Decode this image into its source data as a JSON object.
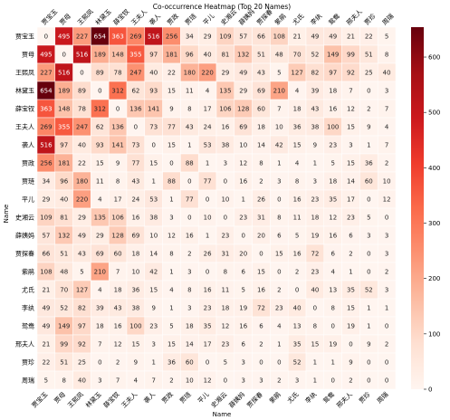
{
  "chart_data": {
    "type": "heatmap",
    "title": "Co-occurrence Heatmap (Top 20 Names)",
    "xlabel": "Name",
    "ylabel": "Name",
    "labels": [
      "贾宝玉",
      "贾母",
      "王熙凤",
      "林黛玉",
      "薛宝钗",
      "王夫人",
      "袭人",
      "贾政",
      "贾琏",
      "平儿",
      "史湘云",
      "薛姨妈",
      "贾探春",
      "紫鹃",
      "尤氏",
      "李纨",
      "鸳鸯",
      "邢夫人",
      "贾珍",
      "周瑞"
    ],
    "matrix": [
      [
        0,
        495,
        227,
        654,
        363,
        269,
        516,
        256,
        34,
        29,
        109,
        57,
        66,
        108,
        21,
        49,
        49,
        21,
        22,
        5
      ],
      [
        495,
        0,
        516,
        189,
        148,
        355,
        97,
        181,
        96,
        40,
        81,
        132,
        51,
        48,
        70,
        52,
        149,
        99,
        51,
        8
      ],
      [
        227,
        516,
        0,
        89,
        78,
        247,
        40,
        22,
        180,
        220,
        29,
        49,
        43,
        5,
        127,
        82,
        97,
        92,
        25,
        40
      ],
      [
        654,
        189,
        89,
        0,
        312,
        62,
        93,
        15,
        11,
        4,
        135,
        29,
        69,
        210,
        4,
        39,
        18,
        7,
        0,
        3
      ],
      [
        363,
        148,
        78,
        312,
        0,
        136,
        141,
        9,
        8,
        17,
        106,
        128,
        60,
        7,
        18,
        43,
        16,
        12,
        2,
        7
      ],
      [
        269,
        355,
        247,
        62,
        136,
        0,
        73,
        77,
        43,
        24,
        16,
        69,
        18,
        10,
        36,
        38,
        100,
        15,
        9,
        4
      ],
      [
        516,
        97,
        40,
        93,
        141,
        73,
        0,
        15,
        1,
        53,
        38,
        10,
        14,
        42,
        15,
        9,
        23,
        3,
        1,
        7
      ],
      [
        256,
        181,
        22,
        15,
        9,
        77,
        15,
        0,
        88,
        1,
        3,
        12,
        8,
        1,
        4,
        1,
        5,
        15,
        36,
        2
      ],
      [
        34,
        96,
        180,
        11,
        8,
        43,
        1,
        88,
        0,
        77,
        0,
        16,
        2,
        3,
        8,
        3,
        18,
        14,
        60,
        10
      ],
      [
        29,
        40,
        220,
        4,
        17,
        24,
        53,
        1,
        77,
        0,
        10,
        1,
        26,
        0,
        16,
        23,
        35,
        17,
        0,
        12
      ],
      [
        109,
        81,
        29,
        135,
        106,
        16,
        38,
        3,
        0,
        10,
        0,
        23,
        31,
        8,
        11,
        18,
        12,
        23,
        5,
        0
      ],
      [
        57,
        132,
        49,
        29,
        128,
        69,
        10,
        12,
        16,
        1,
        23,
        0,
        20,
        6,
        5,
        19,
        16,
        6,
        3,
        3
      ],
      [
        66,
        51,
        43,
        69,
        60,
        18,
        14,
        8,
        2,
        26,
        31,
        20,
        0,
        15,
        16,
        72,
        6,
        2,
        0,
        3
      ],
      [
        108,
        48,
        5,
        210,
        7,
        10,
        42,
        1,
        3,
        0,
        8,
        6,
        15,
        0,
        2,
        23,
        4,
        1,
        0,
        2
      ],
      [
        21,
        70,
        127,
        4,
        18,
        36,
        15,
        4,
        8,
        16,
        11,
        5,
        16,
        2,
        0,
        40,
        13,
        35,
        52,
        3
      ],
      [
        49,
        52,
        82,
        39,
        43,
        38,
        9,
        1,
        3,
        23,
        18,
        19,
        72,
        23,
        40,
        0,
        8,
        15,
        1,
        1
      ],
      [
        49,
        149,
        97,
        18,
        16,
        100,
        23,
        5,
        18,
        35,
        12,
        16,
        6,
        4,
        13,
        8,
        0,
        19,
        1,
        0
      ],
      [
        21,
        99,
        92,
        7,
        12,
        15,
        3,
        15,
        14,
        17,
        23,
        6,
        2,
        1,
        35,
        15,
        19,
        0,
        9,
        2
      ],
      [
        22,
        51,
        25,
        0,
        2,
        9,
        1,
        36,
        60,
        0,
        5,
        3,
        0,
        0,
        52,
        1,
        1,
        9,
        0,
        0
      ],
      [
        5,
        8,
        40,
        3,
        7,
        4,
        7,
        2,
        10,
        12,
        0,
        3,
        3,
        2,
        3,
        1,
        0,
        2,
        0,
        0
      ]
    ],
    "colorbar_ticks": [
      0,
      100,
      200,
      300,
      400,
      500,
      600
    ],
    "vmin": 0,
    "vmax": 654,
    "colormap": "Reds",
    "colors": {
      "low": "#fff5f0",
      "high": "#67000d"
    }
  }
}
